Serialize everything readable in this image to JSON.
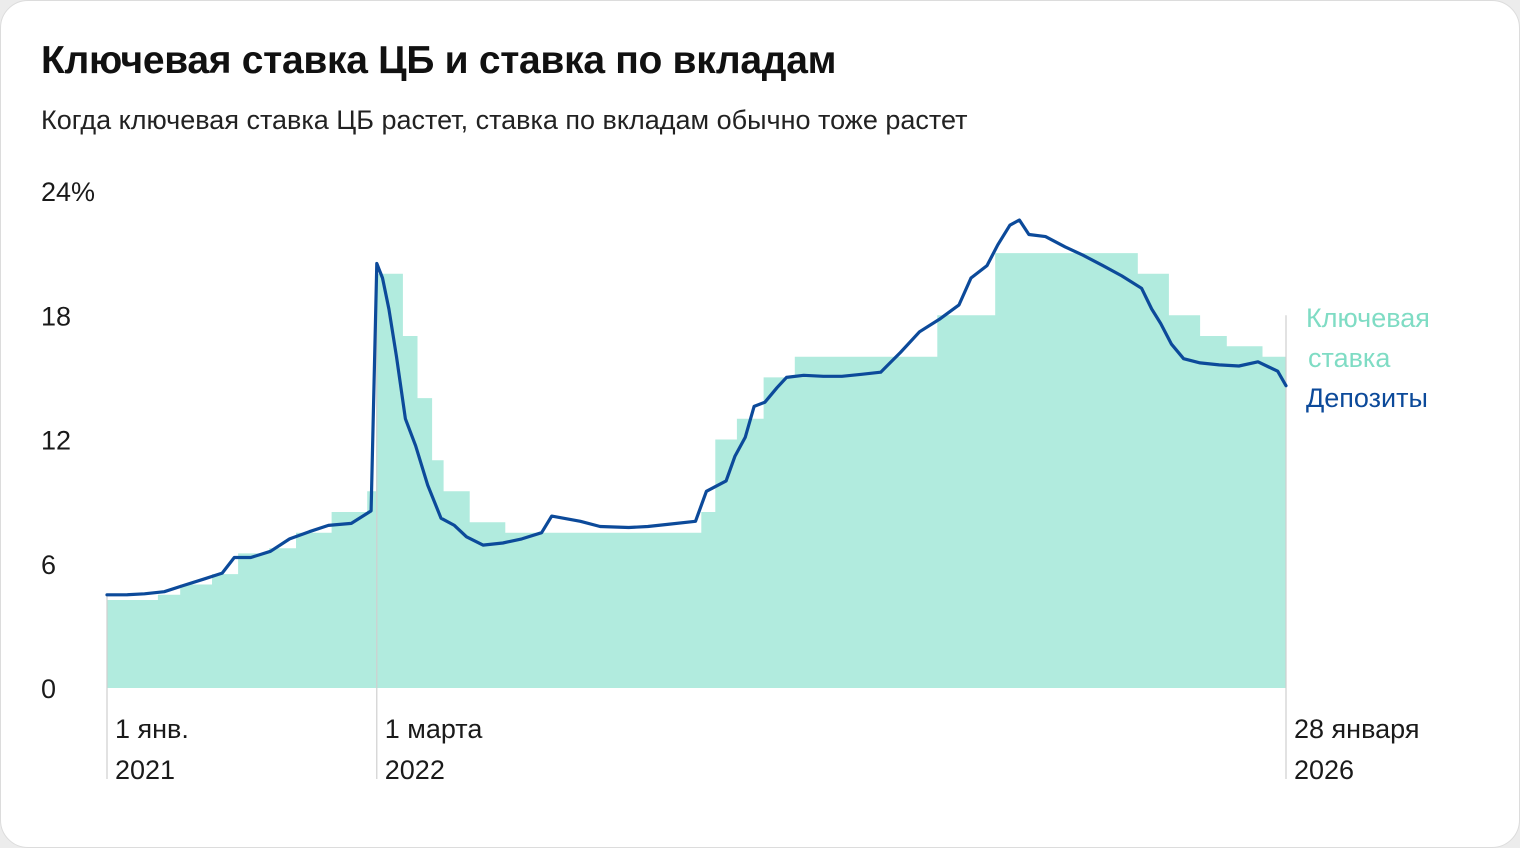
{
  "title": "Ключевая ставка ЦБ и ставка по вкладам",
  "subtitle": "Когда ключевая ставка ЦБ растет, ставка по вкладам обычно тоже растет",
  "colors": {
    "key_rate_fill": "#b1ebde",
    "deposit_line": "#0c4a9a",
    "key_rate_label": "#7fdcc4",
    "marker_line": "#cfcfcf"
  },
  "chart_data": {
    "type": "area",
    "ylim": [
      0,
      24
    ],
    "yticks": [
      {
        "value": 0,
        "label": "0"
      },
      {
        "value": 6,
        "label": "6"
      },
      {
        "value": 12,
        "label": "12"
      },
      {
        "value": 18,
        "label": "18"
      },
      {
        "value": 24,
        "label": "24%"
      }
    ],
    "x_range": [
      "2021-01-01",
      "2026-01-28"
    ],
    "x_labels": [
      {
        "date": "2021-01-01",
        "lines": [
          "1 янв.",
          "2021"
        ]
      },
      {
        "date": "2022-03-01",
        "lines": [
          "1 марта",
          "2022"
        ]
      },
      {
        "date": "2026-01-28",
        "lines": [
          "28 января",
          "2026"
        ]
      }
    ],
    "grid": false,
    "legend_position": "right",
    "series": [
      {
        "name": "Ключевая ставка",
        "kind": "step-area",
        "points": [
          [
            "2021-01-01",
            4.25
          ],
          [
            "2021-03-22",
            4.5
          ],
          [
            "2021-04-26",
            5.0
          ],
          [
            "2021-06-15",
            5.5
          ],
          [
            "2021-07-26",
            6.5
          ],
          [
            "2021-09-13",
            6.75
          ],
          [
            "2021-10-25",
            7.5
          ],
          [
            "2021-12-20",
            8.5
          ],
          [
            "2022-02-14",
            9.5
          ],
          [
            "2022-02-28",
            20.0
          ],
          [
            "2022-04-11",
            17.0
          ],
          [
            "2022-05-04",
            14.0
          ],
          [
            "2022-05-27",
            11.0
          ],
          [
            "2022-06-14",
            9.5
          ],
          [
            "2022-07-25",
            8.0
          ],
          [
            "2022-09-19",
            7.5
          ],
          [
            "2023-07-24",
            8.5
          ],
          [
            "2023-08-15",
            12.0
          ],
          [
            "2023-09-18",
            13.0
          ],
          [
            "2023-10-30",
            15.0
          ],
          [
            "2023-12-18",
            16.0
          ],
          [
            "2024-07-29",
            18.0
          ],
          [
            "2024-10-28",
            21.0
          ],
          [
            "2025-06-09",
            20.0
          ],
          [
            "2025-07-28",
            18.0
          ],
          [
            "2025-09-15",
            17.0
          ],
          [
            "2025-10-27",
            16.5
          ],
          [
            "2025-12-22",
            16.0
          ],
          [
            "2026-01-28",
            16.0
          ]
        ]
      },
      {
        "name": "Депозиты",
        "kind": "line",
        "points": [
          [
            "2021-01-01",
            4.5
          ],
          [
            "2021-02-01",
            4.5
          ],
          [
            "2021-03-01",
            4.55
          ],
          [
            "2021-04-01",
            4.65
          ],
          [
            "2021-05-01",
            4.95
          ],
          [
            "2021-06-01",
            5.25
          ],
          [
            "2021-07-01",
            5.55
          ],
          [
            "2021-07-20",
            6.3
          ],
          [
            "2021-08-15",
            6.3
          ],
          [
            "2021-09-15",
            6.6
          ],
          [
            "2021-10-15",
            7.2
          ],
          [
            "2021-11-15",
            7.55
          ],
          [
            "2021-12-15",
            7.85
          ],
          [
            "2022-01-20",
            7.95
          ],
          [
            "2022-02-20",
            8.55
          ],
          [
            "2022-03-01",
            20.5
          ],
          [
            "2022-03-10",
            19.8
          ],
          [
            "2022-03-20",
            18.3
          ],
          [
            "2022-04-01",
            16.0
          ],
          [
            "2022-04-15",
            13.0
          ],
          [
            "2022-05-01",
            11.7
          ],
          [
            "2022-05-20",
            9.8
          ],
          [
            "2022-06-10",
            8.2
          ],
          [
            "2022-07-01",
            7.85
          ],
          [
            "2022-07-20",
            7.3
          ],
          [
            "2022-08-15",
            6.9
          ],
          [
            "2022-09-15",
            7.0
          ],
          [
            "2022-10-15",
            7.2
          ],
          [
            "2022-11-15",
            7.5
          ],
          [
            "2022-12-01",
            8.3
          ],
          [
            "2023-01-15",
            8.05
          ],
          [
            "2023-02-15",
            7.8
          ],
          [
            "2023-04-01",
            7.75
          ],
          [
            "2023-05-01",
            7.8
          ],
          [
            "2023-06-01",
            7.9
          ],
          [
            "2023-07-15",
            8.05
          ],
          [
            "2023-08-01",
            9.5
          ],
          [
            "2023-09-01",
            10.0
          ],
          [
            "2023-09-15",
            11.2
          ],
          [
            "2023-10-01",
            12.1
          ],
          [
            "2023-10-15",
            13.6
          ],
          [
            "2023-11-01",
            13.8
          ],
          [
            "2023-11-20",
            14.5
          ],
          [
            "2023-12-05",
            15.0
          ],
          [
            "2024-01-01",
            15.1
          ],
          [
            "2024-02-01",
            15.05
          ],
          [
            "2024-03-01",
            15.05
          ],
          [
            "2024-04-01",
            15.15
          ],
          [
            "2024-05-01",
            15.25
          ],
          [
            "2024-06-01",
            16.2
          ],
          [
            "2024-07-01",
            17.2
          ],
          [
            "2024-08-01",
            17.8
          ],
          [
            "2024-09-01",
            18.5
          ],
          [
            "2024-09-20",
            19.8
          ],
          [
            "2024-10-15",
            20.4
          ],
          [
            "2024-11-01",
            21.4
          ],
          [
            "2024-11-20",
            22.35
          ],
          [
            "2024-12-05",
            22.6
          ],
          [
            "2024-12-20",
            21.9
          ],
          [
            "2025-01-15",
            21.8
          ],
          [
            "2025-02-15",
            21.3
          ],
          [
            "2025-03-15",
            20.9
          ],
          [
            "2025-04-15",
            20.4
          ],
          [
            "2025-05-15",
            19.9
          ],
          [
            "2025-06-15",
            19.3
          ],
          [
            "2025-07-01",
            18.3
          ],
          [
            "2025-07-15",
            17.6
          ],
          [
            "2025-08-01",
            16.6
          ],
          [
            "2025-08-20",
            15.9
          ],
          [
            "2025-09-15",
            15.7
          ],
          [
            "2025-10-15",
            15.6
          ],
          [
            "2025-11-15",
            15.55
          ],
          [
            "2025-12-15",
            15.75
          ],
          [
            "2026-01-01",
            15.5
          ],
          [
            "2026-01-15",
            15.3
          ],
          [
            "2026-01-28",
            14.6
          ]
        ]
      }
    ]
  },
  "legend": {
    "key_rate": [
      "Ключевая",
      "ставка"
    ],
    "deposits": "Депозиты"
  }
}
